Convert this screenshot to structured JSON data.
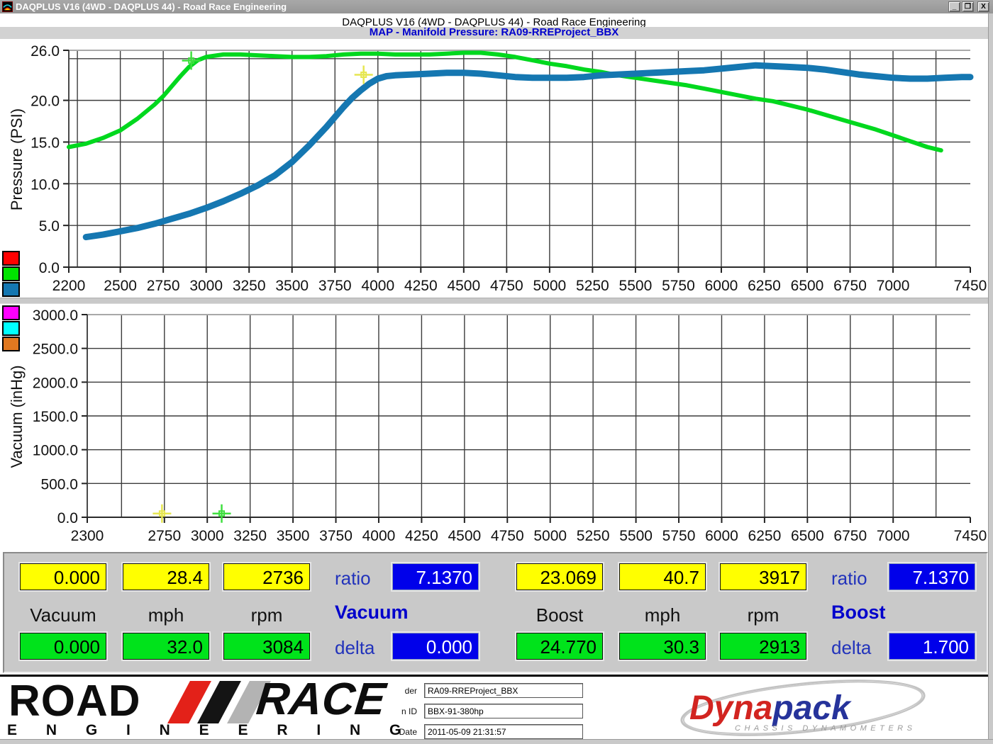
{
  "window": {
    "title": "DAQPLUS V16 (4WD - DAQPLUS 44) - Road Race Engineering",
    "minimize": "_",
    "restore": "❐",
    "close": "X"
  },
  "header": {
    "line1": "DAQPLUS V16 (4WD - DAQPLUS 44) - Road Race Engineering",
    "line2": "MAP - Manifold Pressure: RA09-RREProject_BBX"
  },
  "chart_data": [
    {
      "type": "line",
      "ylabel": "Pressure (PSI)",
      "ylim": [
        0,
        26
      ],
      "xlim": [
        2200,
        7450
      ],
      "grid": true,
      "xgrid_step": 250,
      "ytick_values": [
        26,
        20,
        15,
        10,
        5,
        0
      ],
      "ytick_labels": [
        "26.0",
        "20.0",
        "15.0",
        "10.0",
        "5.0",
        "0.0"
      ],
      "ygrid_values": [
        25,
        20,
        15,
        10,
        5
      ],
      "xtick_values": [
        2200,
        2500,
        2750,
        3000,
        3250,
        3500,
        3750,
        4000,
        4250,
        4500,
        4750,
        5000,
        5250,
        5500,
        5750,
        6000,
        6250,
        6500,
        6750,
        7000,
        7450
      ],
      "xtick_labels": [
        "2200",
        "2500",
        "2750",
        "3000",
        "3250",
        "3500",
        "3750",
        "4000",
        "4250",
        "4500",
        "4750",
        "5000",
        "5250",
        "5500",
        "5750",
        "6000",
        "6250",
        "6500",
        "6750",
        "7000",
        "7450"
      ],
      "legend_colors": [
        "#ff0000",
        "#00e400",
        "#1577b1"
      ],
      "series": [
        {
          "name": "map-green",
          "color": "#00d81e",
          "width": 6,
          "points": [
            [
              2200,
              14.4
            ],
            [
              2300,
              14.8
            ],
            [
              2400,
              15.5
            ],
            [
              2500,
              16.4
            ],
            [
              2600,
              17.8
            ],
            [
              2700,
              19.5
            ],
            [
              2750,
              20.5
            ],
            [
              2800,
              21.7
            ],
            [
              2850,
              22.9
            ],
            [
              2900,
              24.0
            ],
            [
              2950,
              24.8
            ],
            [
              3000,
              25.2
            ],
            [
              3100,
              25.5
            ],
            [
              3200,
              25.5
            ],
            [
              3300,
              25.4
            ],
            [
              3400,
              25.3
            ],
            [
              3500,
              25.2
            ],
            [
              3600,
              25.2
            ],
            [
              3700,
              25.3
            ],
            [
              3800,
              25.5
            ],
            [
              3900,
              25.6
            ],
            [
              4000,
              25.6
            ],
            [
              4100,
              25.5
            ],
            [
              4200,
              25.5
            ],
            [
              4300,
              25.5
            ],
            [
              4400,
              25.6
            ],
            [
              4500,
              25.7
            ],
            [
              4600,
              25.7
            ],
            [
              4700,
              25.5
            ],
            [
              4800,
              25.2
            ],
            [
              4900,
              24.8
            ],
            [
              5000,
              24.4
            ],
            [
              5100,
              24.1
            ],
            [
              5200,
              23.7
            ],
            [
              5300,
              23.4
            ],
            [
              5400,
              23.0
            ],
            [
              5500,
              22.7
            ],
            [
              5600,
              22.4
            ],
            [
              5700,
              22.1
            ],
            [
              5800,
              21.8
            ],
            [
              5900,
              21.4
            ],
            [
              6000,
              21.0
            ],
            [
              6100,
              20.6
            ],
            [
              6200,
              20.2
            ],
            [
              6300,
              19.9
            ],
            [
              6400,
              19.4
            ],
            [
              6500,
              18.9
            ],
            [
              6600,
              18.3
            ],
            [
              6700,
              17.7
            ],
            [
              6800,
              17.1
            ],
            [
              6900,
              16.5
            ],
            [
              7000,
              15.8
            ],
            [
              7100,
              15.1
            ],
            [
              7200,
              14.4
            ],
            [
              7280,
              14.0
            ]
          ]
        },
        {
          "name": "map-blue",
          "color": "#1577b1",
          "width": 9,
          "points": [
            [
              2300,
              3.6
            ],
            [
              2400,
              3.9
            ],
            [
              2500,
              4.3
            ],
            [
              2600,
              4.7
            ],
            [
              2700,
              5.2
            ],
            [
              2800,
              5.8
            ],
            [
              2900,
              6.4
            ],
            [
              3000,
              7.1
            ],
            [
              3100,
              7.9
            ],
            [
              3200,
              8.8
            ],
            [
              3300,
              9.8
            ],
            [
              3400,
              11.0
            ],
            [
              3500,
              12.6
            ],
            [
              3600,
              14.6
            ],
            [
              3700,
              16.8
            ],
            [
              3750,
              18.0
            ],
            [
              3800,
              19.2
            ],
            [
              3850,
              20.3
            ],
            [
              3900,
              21.2
            ],
            [
              3950,
              22.0
            ],
            [
              4000,
              22.6
            ],
            [
              4050,
              22.9
            ],
            [
              4100,
              23.0
            ],
            [
              4200,
              23.1
            ],
            [
              4300,
              23.2
            ],
            [
              4400,
              23.3
            ],
            [
              4500,
              23.3
            ],
            [
              4600,
              23.2
            ],
            [
              4700,
              23.0
            ],
            [
              4800,
              22.8
            ],
            [
              4900,
              22.7
            ],
            [
              5000,
              22.7
            ],
            [
              5100,
              22.7
            ],
            [
              5200,
              22.8
            ],
            [
              5300,
              23.0
            ],
            [
              5400,
              23.1
            ],
            [
              5500,
              23.2
            ],
            [
              5600,
              23.3
            ],
            [
              5700,
              23.4
            ],
            [
              5800,
              23.5
            ],
            [
              5900,
              23.6
            ],
            [
              6000,
              23.8
            ],
            [
              6100,
              24.0
            ],
            [
              6200,
              24.2
            ],
            [
              6300,
              24.1
            ],
            [
              6400,
              24.0
            ],
            [
              6500,
              23.9
            ],
            [
              6600,
              23.7
            ],
            [
              6700,
              23.4
            ],
            [
              6800,
              23.1
            ],
            [
              6900,
              22.9
            ],
            [
              7000,
              22.7
            ],
            [
              7100,
              22.6
            ],
            [
              7200,
              22.6
            ],
            [
              7300,
              22.7
            ],
            [
              7400,
              22.8
            ],
            [
              7450,
              22.8
            ]
          ]
        }
      ],
      "markers": [
        {
          "name": "yellow-cursor",
          "color": "#e6e650",
          "x": 3917,
          "y": 23.069
        },
        {
          "name": "green-cursor",
          "color": "#3fdf3f",
          "x": 2913,
          "y": 24.77
        }
      ]
    },
    {
      "type": "line",
      "ylabel": "Vacuum (inHg)",
      "ylim": [
        0,
        3000
      ],
      "xlim": [
        2300,
        7450
      ],
      "grid": true,
      "xgrid_step": 250,
      "ytick_values": [
        3000,
        2500,
        2000,
        1500,
        1000,
        500,
        0
      ],
      "ytick_labels": [
        "3000.0",
        "2500.0",
        "2000.0",
        "1500.0",
        "1000.0",
        "500.0",
        "0.0"
      ],
      "ygrid_values": [
        2500,
        2000,
        1500,
        1000,
        500
      ],
      "xtick_values": [
        2300,
        2750,
        3000,
        3250,
        3500,
        3750,
        4000,
        4250,
        4500,
        4750,
        5000,
        5250,
        5500,
        5750,
        6000,
        6250,
        6500,
        6750,
        7000,
        7450
      ],
      "xtick_labels": [
        "2300",
        "2750",
        "3000",
        "3250",
        "3500",
        "3750",
        "4000",
        "4250",
        "4500",
        "4750",
        "5000",
        "5250",
        "5500",
        "5750",
        "6000",
        "6250",
        "6500",
        "6750",
        "7000",
        "7450"
      ],
      "legend_colors": [
        "#ff00ff",
        "#00ffff",
        "#e07820"
      ],
      "series": [],
      "markers": [
        {
          "name": "yellow-cursor",
          "color": "#e6e650",
          "x": 2736,
          "y": 55
        },
        {
          "name": "green-cursor",
          "color": "#3fdf3f",
          "x": 3084,
          "y": 55
        }
      ]
    }
  ],
  "panels": [
    {
      "top_values": [
        "0.000",
        "28.4",
        "2736"
      ],
      "ratio_label": "ratio",
      "ratio_value": "7.1370",
      "col_labels": [
        "Vacuum",
        "mph",
        "rpm"
      ],
      "group_label": "Vacuum",
      "delta_label": "delta",
      "bottom_values": [
        "0.000",
        "32.0",
        "3084"
      ],
      "delta_value": "0.000"
    },
    {
      "top_values": [
        "23.069",
        "40.7",
        "3917"
      ],
      "ratio_label": "ratio",
      "ratio_value": "7.1370",
      "col_labels": [
        "Boost",
        "mph",
        "rpm"
      ],
      "group_label": "Boost",
      "delta_label": "delta",
      "bottom_values": [
        "24.770",
        "30.3",
        "2913"
      ],
      "delta_value": "1.700"
    }
  ],
  "footer": {
    "roadrace": {
      "word1": "ROAD",
      "word2": "RACE",
      "word3": "E N G I N E E R I N G"
    },
    "fields": [
      {
        "label": "der",
        "value": "RA09-RREProject_BBX"
      },
      {
        "label": "n ID",
        "value": "BBX-91-380hp"
      },
      {
        "label": "Date",
        "value": "2011-05-09 21:31:57"
      }
    ],
    "dynapack": {
      "part1": "Dyna",
      "part2": "pack",
      "tagline": "CHASSIS DYNAMOMETERS"
    }
  },
  "colors": {
    "accent_blue": "#0000cc",
    "box_yellow": "#ffff00",
    "box_green": "#00e31b",
    "box_blue": "#0000ea",
    "panel_bg": "#c9c9c9",
    "titlebar": "#9c9c9c"
  }
}
